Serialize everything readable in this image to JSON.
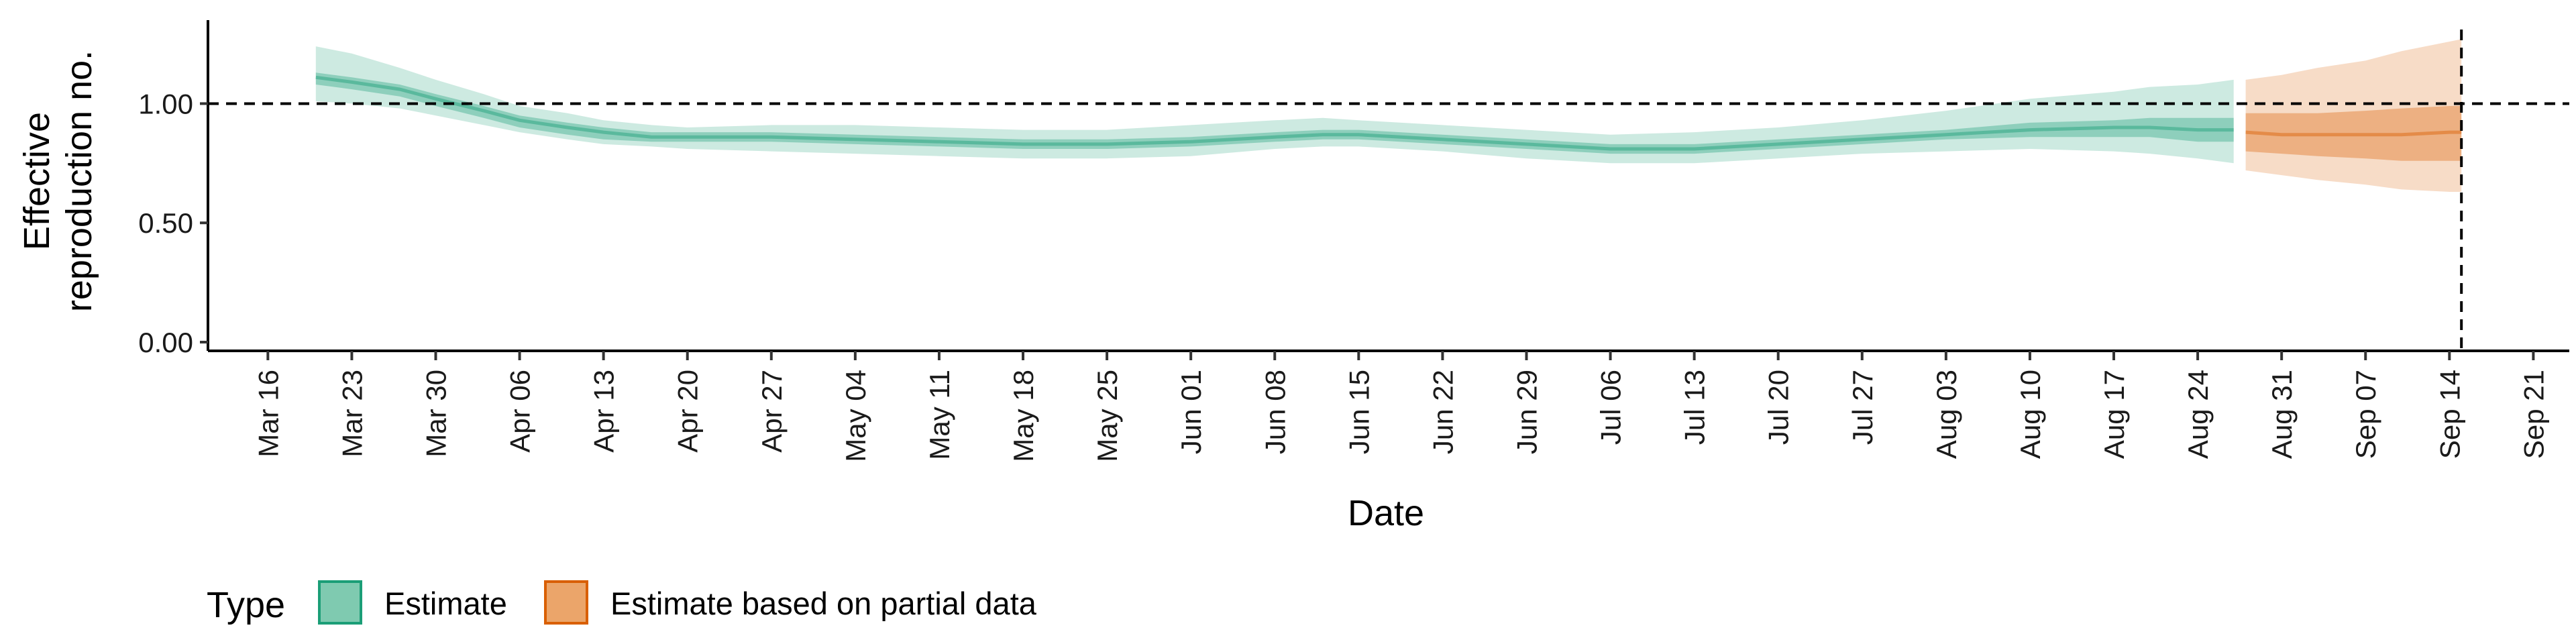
{
  "chart_data": {
    "type": "area",
    "xlabel": "Date",
    "ylabel": [
      "Effective",
      "reproduction no."
    ],
    "ylim": [
      0,
      1.35
    ],
    "yticks": [
      0,
      0.5,
      1.0
    ],
    "ytick_labels": [
      "0.00",
      "0.50",
      "1.00"
    ],
    "xlim": [
      "2020-03-11",
      "2020-09-24"
    ],
    "xticks": [
      "2020-03-16",
      "2020-03-23",
      "2020-03-30",
      "2020-04-06",
      "2020-04-13",
      "2020-04-20",
      "2020-04-27",
      "2020-05-04",
      "2020-05-11",
      "2020-05-18",
      "2020-05-25",
      "2020-06-01",
      "2020-06-08",
      "2020-06-15",
      "2020-06-22",
      "2020-06-29",
      "2020-07-06",
      "2020-07-13",
      "2020-07-20",
      "2020-07-27",
      "2020-08-03",
      "2020-08-10",
      "2020-08-17",
      "2020-08-24",
      "2020-08-31",
      "2020-09-07",
      "2020-09-14",
      "2020-09-21"
    ],
    "xtick_labels": [
      "Mar 16",
      "Mar 23",
      "Mar 30",
      "Apr 06",
      "Apr 13",
      "Apr 20",
      "Apr 27",
      "May 04",
      "May 11",
      "May 18",
      "May 25",
      "Jun 01",
      "Jun 08",
      "Jun 15",
      "Jun 22",
      "Jun 29",
      "Jul 06",
      "Jul 13",
      "Jul 20",
      "Jul 27",
      "Aug 03",
      "Aug 10",
      "Aug 17",
      "Aug 24",
      "Aug 31",
      "Sep 07",
      "Sep 14",
      "Sep 21"
    ],
    "reference_line_y": 1.0,
    "reference_line_x": "2020-09-15",
    "grid": false,
    "legend_position": "bottom-left",
    "legend_title": "Type",
    "series": [
      {
        "name": "Estimate",
        "color": "#1b9e77",
        "x": [
          "2020-03-20",
          "2020-03-23",
          "2020-03-27",
          "2020-03-30",
          "2020-04-03",
          "2020-04-06",
          "2020-04-10",
          "2020-04-13",
          "2020-04-17",
          "2020-04-20",
          "2020-04-27",
          "2020-05-04",
          "2020-05-11",
          "2020-05-18",
          "2020-05-25",
          "2020-06-01",
          "2020-06-08",
          "2020-06-12",
          "2020-06-15",
          "2020-06-22",
          "2020-06-29",
          "2020-07-06",
          "2020-07-13",
          "2020-07-20",
          "2020-07-27",
          "2020-08-03",
          "2020-08-10",
          "2020-08-17",
          "2020-08-20",
          "2020-08-24",
          "2020-08-27"
        ],
        "median": [
          1.11,
          1.09,
          1.06,
          1.02,
          0.97,
          0.93,
          0.9,
          0.88,
          0.86,
          0.86,
          0.86,
          0.85,
          0.84,
          0.83,
          0.83,
          0.84,
          0.86,
          0.87,
          0.87,
          0.85,
          0.83,
          0.81,
          0.81,
          0.83,
          0.85,
          0.87,
          0.89,
          0.9,
          0.9,
          0.89,
          0.89
        ],
        "lower_50": [
          1.08,
          1.06,
          1.03,
          0.99,
          0.94,
          0.9,
          0.87,
          0.85,
          0.84,
          0.84,
          0.84,
          0.83,
          0.82,
          0.81,
          0.81,
          0.82,
          0.84,
          0.85,
          0.85,
          0.83,
          0.81,
          0.79,
          0.79,
          0.81,
          0.83,
          0.85,
          0.86,
          0.86,
          0.86,
          0.84,
          0.84
        ],
        "upper_50": [
          1.13,
          1.11,
          1.08,
          1.04,
          0.99,
          0.95,
          0.92,
          0.9,
          0.88,
          0.88,
          0.88,
          0.87,
          0.86,
          0.85,
          0.85,
          0.86,
          0.88,
          0.89,
          0.89,
          0.87,
          0.85,
          0.83,
          0.83,
          0.85,
          0.87,
          0.89,
          0.92,
          0.93,
          0.94,
          0.94,
          0.94
        ],
        "lower_90": [
          1.01,
          1.0,
          0.98,
          0.95,
          0.91,
          0.88,
          0.85,
          0.83,
          0.82,
          0.81,
          0.8,
          0.79,
          0.78,
          0.77,
          0.77,
          0.78,
          0.81,
          0.82,
          0.82,
          0.8,
          0.77,
          0.75,
          0.75,
          0.77,
          0.79,
          0.8,
          0.81,
          0.8,
          0.79,
          0.77,
          0.75
        ],
        "upper_90": [
          1.24,
          1.21,
          1.15,
          1.1,
          1.04,
          0.99,
          0.96,
          0.93,
          0.91,
          0.9,
          0.91,
          0.91,
          0.9,
          0.89,
          0.89,
          0.91,
          0.93,
          0.94,
          0.93,
          0.91,
          0.89,
          0.87,
          0.88,
          0.9,
          0.93,
          0.97,
          1.02,
          1.05,
          1.07,
          1.08,
          1.1
        ]
      },
      {
        "name": "Estimate based on partial data",
        "color": "#d95f02",
        "x": [
          "2020-08-28",
          "2020-08-31",
          "2020-09-03",
          "2020-09-07",
          "2020-09-10",
          "2020-09-14",
          "2020-09-15"
        ],
        "median": [
          0.88,
          0.87,
          0.87,
          0.87,
          0.87,
          0.88,
          0.88
        ],
        "lower_50": [
          0.8,
          0.79,
          0.78,
          0.77,
          0.76,
          0.76,
          0.76
        ],
        "upper_50": [
          0.96,
          0.96,
          0.96,
          0.97,
          0.98,
          0.99,
          0.99
        ],
        "lower_90": [
          0.72,
          0.7,
          0.68,
          0.66,
          0.64,
          0.63,
          0.63
        ],
        "upper_90": [
          1.1,
          1.12,
          1.15,
          1.18,
          1.22,
          1.26,
          1.27
        ]
      }
    ]
  }
}
